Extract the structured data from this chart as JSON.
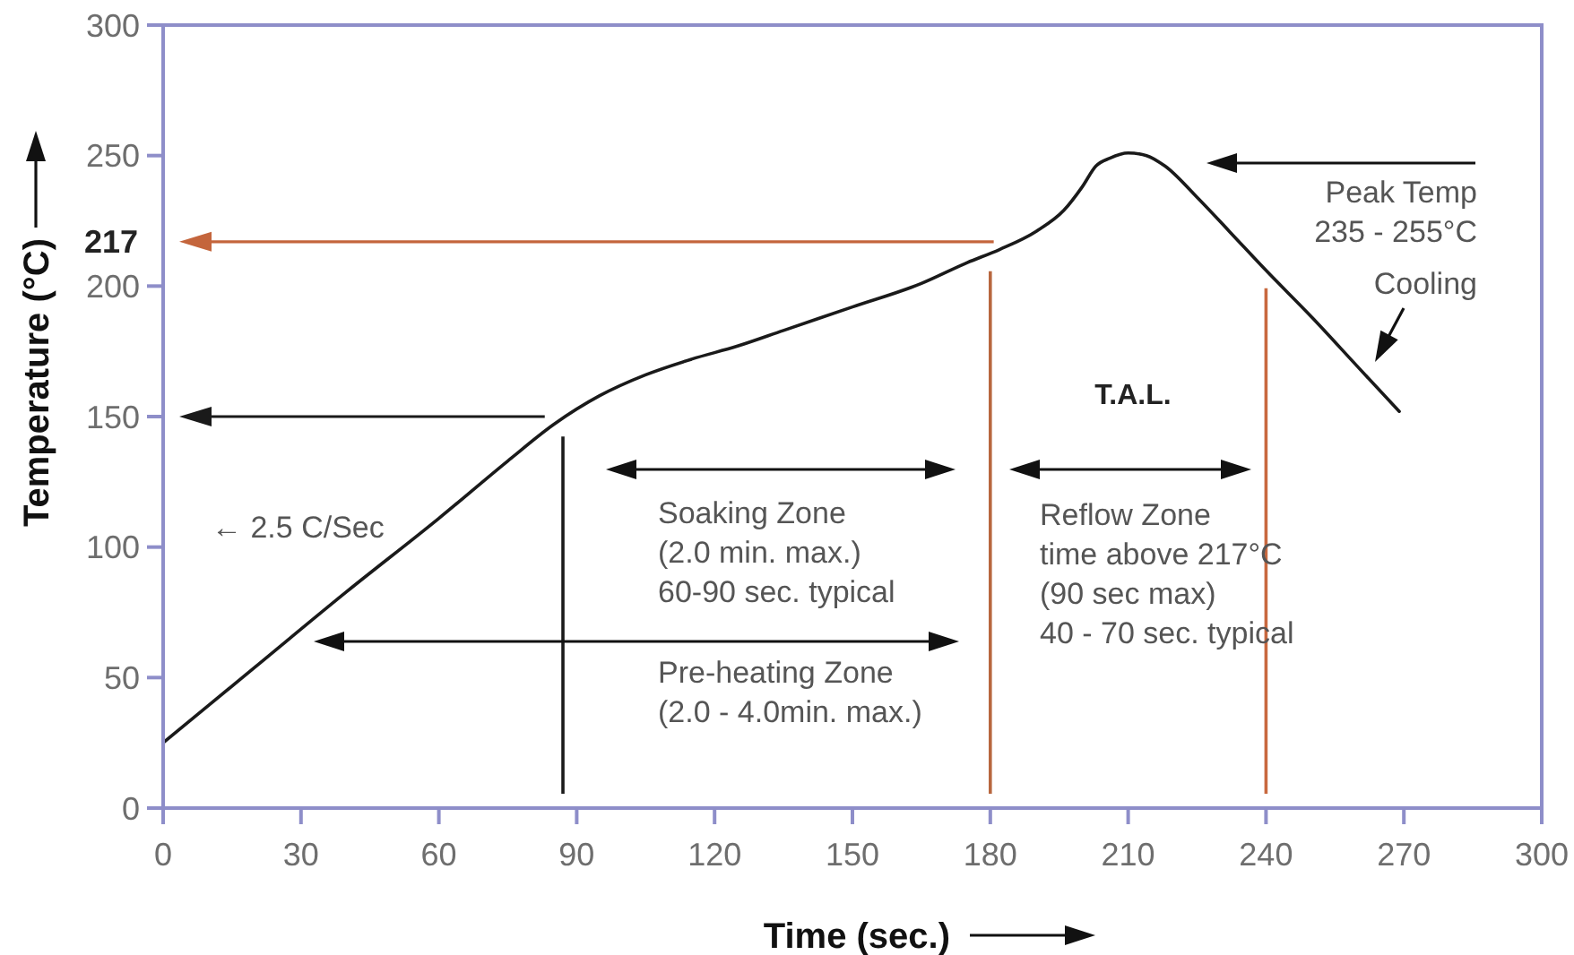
{
  "chart_data": {
    "type": "line",
    "xlabel": "Time (sec.)",
    "ylabel": "Temperature (°C)",
    "x": [
      0,
      20,
      40,
      60,
      75,
      85,
      95,
      105,
      115,
      125,
      135,
      150,
      165,
      175,
      182,
      190,
      196,
      200,
      203,
      206,
      210,
      214,
      218,
      225,
      232,
      240,
      250,
      260,
      269
    ],
    "values": [
      25,
      54,
      83,
      111,
      133,
      147,
      158,
      166,
      172,
      177,
      183,
      192,
      201,
      209,
      214,
      221,
      229,
      238,
      246,
      249,
      251,
      250,
      246,
      234,
      221,
      206,
      188,
      169,
      152
    ],
    "color": "#1a1a1a",
    "xlim": [
      0,
      300
    ],
    "xticks": [
      0,
      30,
      60,
      90,
      120,
      150,
      180,
      210,
      240,
      270,
      300
    ],
    "ylim": [
      0,
      300
    ],
    "yticks": [
      0,
      50,
      100,
      150,
      200,
      250,
      300
    ],
    "ref_lines": [
      {
        "axis": "y",
        "value": 217,
        "label": "217",
        "color": "#c4653c"
      },
      {
        "axis": "y",
        "value": 150,
        "color": "#1a1a1a"
      },
      {
        "axis": "x",
        "value": 87,
        "color": "#1a1a1a"
      },
      {
        "axis": "x",
        "value": 180,
        "color": "#b8673f"
      },
      {
        "axis": "x",
        "value": 240,
        "color": "#c8693f"
      }
    ],
    "annotations": [
      "← 2.5 C/Sec",
      "Soaking Zone\n(2.0 min. max.)\n60-90 sec. typical",
      "Pre-heating Zone\n(2.0 - 4.0min. max.)",
      "T.A.L.",
      "Reflow Zone\ntime above 217°C\n(90 sec max)\n40 - 70 sec. typical",
      "Peak Temp\n235 - 255°C",
      "Cooling"
    ]
  }
}
